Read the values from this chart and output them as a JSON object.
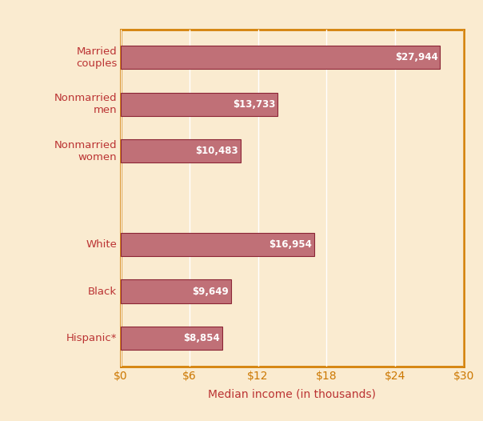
{
  "categories": [
    "Married\ncouples",
    "Nonmarried\nmen",
    "Nonmarried\nwomen",
    "",
    "White",
    "Black",
    "Hispanic*"
  ],
  "values": [
    27944,
    13733,
    10483,
    0,
    16954,
    9649,
    8854
  ],
  "labels": [
    "$27,944",
    "$13,733",
    "$10,483",
    "",
    "$16,954",
    "$9,649",
    "$8,854"
  ],
  "bar_color": "#c07077",
  "bar_edge_color": "#8b2535",
  "background_color": "#faebd0",
  "plot_bg_color": "#faebd0",
  "border_color": "#d4820a",
  "text_color": "#bb3333",
  "xtick_color": "#cc7700",
  "label_text_color": "#ffffff",
  "xlabel": "Median income (in thousands)",
  "xlim": [
    0,
    30000
  ],
  "xticks": [
    0,
    6000,
    12000,
    18000,
    24000,
    30000
  ],
  "xticklabels": [
    "$0",
    "$6",
    "$12",
    "$18",
    "$24",
    "$30"
  ],
  "figsize": [
    6.04,
    5.26
  ],
  "dpi": 100,
  "grid_color": "#ffffff",
  "xlabel_fontsize": 10,
  "tick_fontsize": 10,
  "bar_label_fontsize": 8.5,
  "category_fontsize": 9.5,
  "bar_height": 0.5,
  "y_positions": [
    6,
    5,
    4,
    3,
    2,
    1,
    0
  ]
}
